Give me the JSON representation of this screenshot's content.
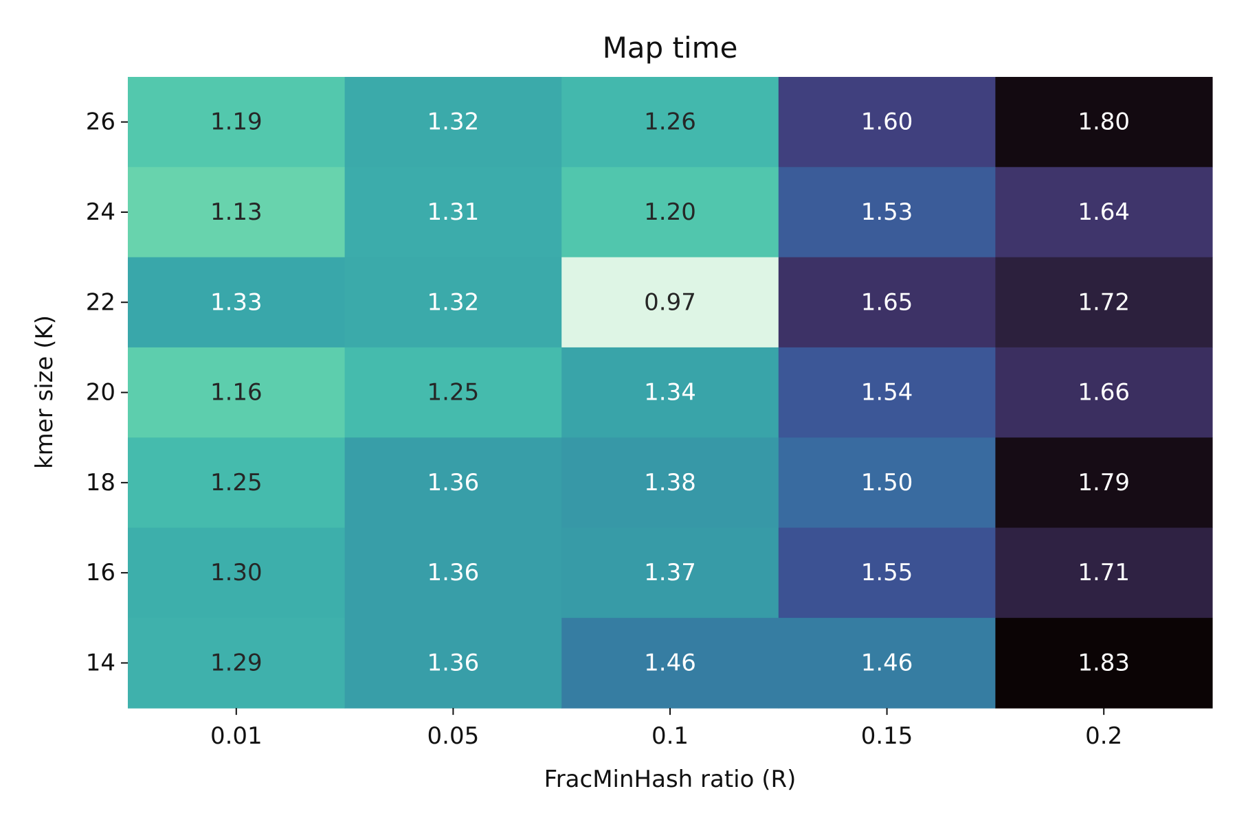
{
  "chart_data": {
    "type": "heatmap",
    "title": "Map time",
    "xlabel": "FracMinHash ratio (R)",
    "ylabel": "kmer size (K)",
    "x": [
      "0.01",
      "0.05",
      "0.1",
      "0.15",
      "0.2"
    ],
    "y": [
      "26",
      "24",
      "22",
      "20",
      "18",
      "16",
      "14"
    ],
    "values": [
      [
        1.19,
        1.32,
        1.26,
        1.6,
        1.8
      ],
      [
        1.13,
        1.31,
        1.2,
        1.53,
        1.64
      ],
      [
        1.33,
        1.32,
        0.97,
        1.65,
        1.72
      ],
      [
        1.16,
        1.25,
        1.34,
        1.54,
        1.66
      ],
      [
        1.25,
        1.36,
        1.38,
        1.5,
        1.79
      ],
      [
        1.3,
        1.36,
        1.37,
        1.55,
        1.71
      ],
      [
        1.29,
        1.36,
        1.46,
        1.46,
        1.83
      ]
    ],
    "value_format": "2 decimals",
    "colormap": "mako (reversed)",
    "vmin": 0.97,
    "vmax": 1.83,
    "colorbar": false,
    "grid": false
  }
}
